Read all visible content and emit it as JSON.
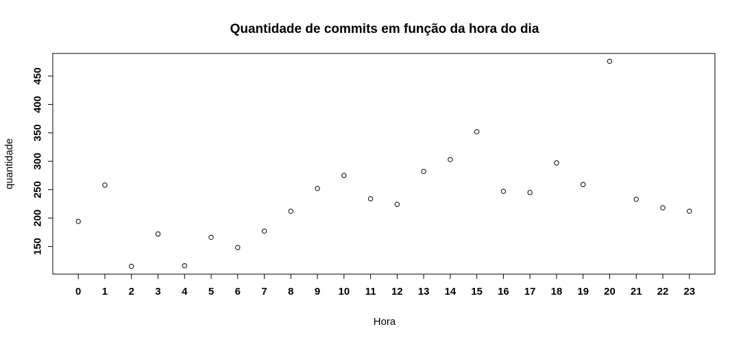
{
  "chart_data": {
    "type": "scatter",
    "title": "Quantidade de commits em função da hora do dia",
    "xlabel": "Hora",
    "ylabel": "quantidade",
    "x": [
      0,
      1,
      2,
      3,
      4,
      5,
      6,
      7,
      8,
      9,
      10,
      11,
      12,
      13,
      14,
      15,
      16,
      17,
      18,
      19,
      20,
      21,
      22,
      23
    ],
    "y": [
      194,
      258,
      115,
      172,
      116,
      166,
      148,
      177,
      212,
      252,
      275,
      234,
      224,
      282,
      303,
      352,
      247,
      245,
      297,
      259,
      476,
      233,
      218,
      212
    ],
    "xticks": [
      "0",
      "1",
      "2",
      "3",
      "4",
      "5",
      "6",
      "7",
      "8",
      "9",
      "10",
      "11",
      "12",
      "13",
      "14",
      "15",
      "16",
      "17",
      "18",
      "19",
      "20",
      "21",
      "22",
      "23"
    ],
    "yticks": [
      150,
      200,
      250,
      300,
      350,
      400,
      450
    ],
    "xlim": [
      -0.96,
      23.96
    ],
    "ylim": [
      101.2,
      489.8
    ],
    "grid": false
  }
}
